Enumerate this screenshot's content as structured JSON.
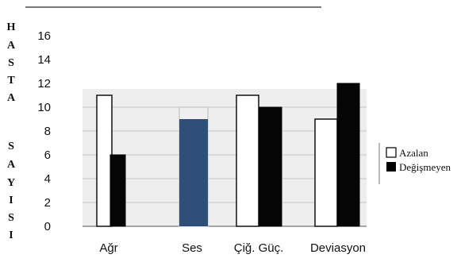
{
  "chart_data": {
    "type": "bar",
    "ylabel": "HASTA SAYISI",
    "ylabel_lines": [
      "H",
      "A",
      "S",
      "T",
      "A",
      "",
      "S",
      "A",
      "Y",
      "I",
      "S",
      "I"
    ],
    "ylim": [
      0,
      16
    ],
    "yticks": [
      0,
      2,
      4,
      6,
      8,
      10,
      12,
      14,
      16
    ],
    "categories": [
      "Ağr",
      "Ses",
      "Çiğ. Güç.",
      "Deviasyon"
    ],
    "series": [
      {
        "name": "Azalan",
        "color": "#ffffff",
        "values": [
          11,
          10,
          11,
          9
        ]
      },
      {
        "name": "Değişmeyen",
        "color": "#000000",
        "values": [
          6,
          9,
          10,
          12
        ]
      }
    ],
    "legend": {
      "placement": "right"
    },
    "grid": true
  }
}
